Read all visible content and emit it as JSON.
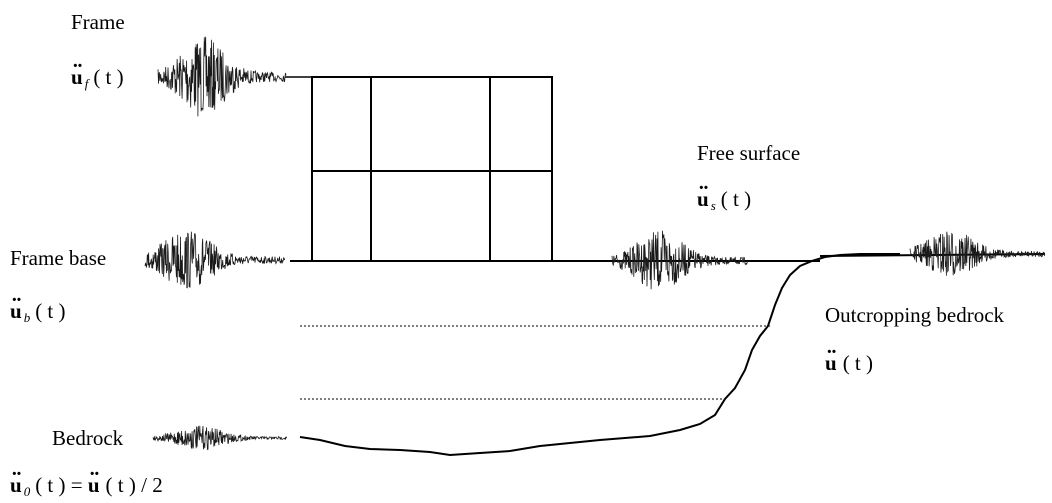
{
  "labels": {
    "frame": "Frame",
    "free_surface": "Free surface",
    "frame_base": "Frame base",
    "outcropping_bedrock": "Outcropping bedrock",
    "bedrock": "Bedrock"
  },
  "accelerations": {
    "frame": {
      "symbol": "u",
      "sub": "f",
      "arg": "( t )"
    },
    "free_surface": {
      "symbol": "u",
      "sub": "s",
      "arg": "( t )"
    },
    "frame_base": {
      "symbol": "u",
      "sub": "b",
      "arg": "( t )"
    },
    "outcropping": {
      "symbol": "u",
      "sub": "",
      "arg": "( t )"
    },
    "bedrock": {
      "symbol": "u",
      "sub": "0",
      "arg": "( t ) = ",
      "symbol2": "u",
      "arg2": "( t ) / 2"
    }
  },
  "colors": {
    "line": "#000000",
    "signal": "#1a1a1a",
    "background": "#ffffff"
  }
}
